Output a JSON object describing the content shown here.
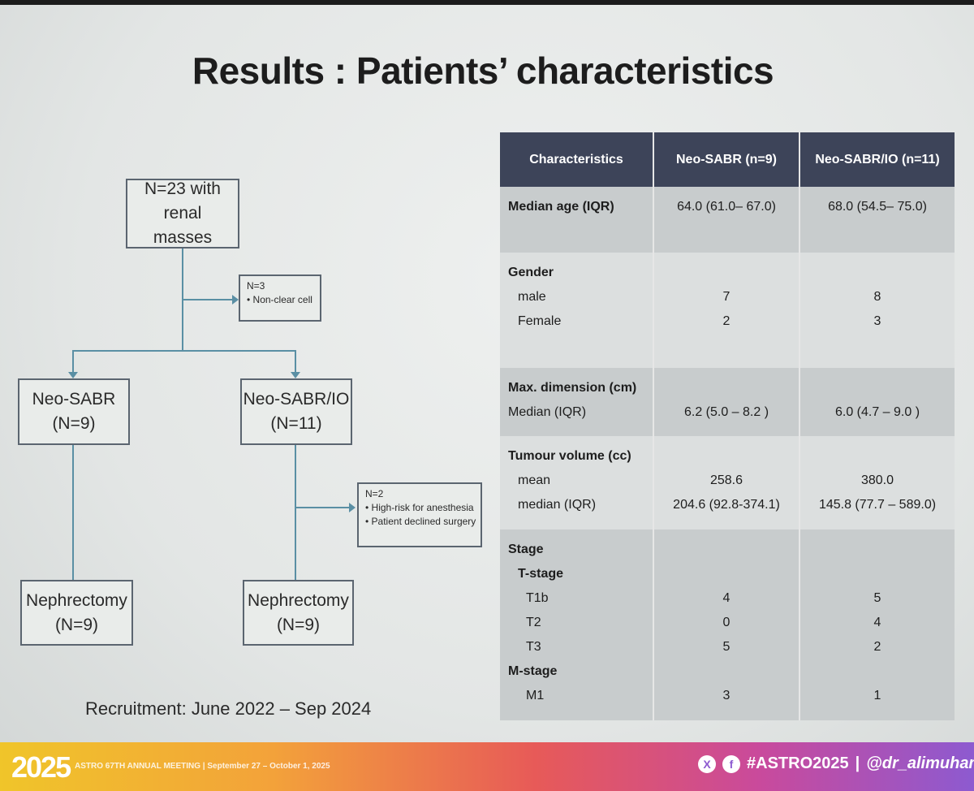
{
  "slide": {
    "title": "Results : Patients’ characteristics"
  },
  "flow": {
    "top": {
      "line1": "N=23 with renal",
      "line2": "masses"
    },
    "excl1": {
      "n": "N=3",
      "items": [
        "Non-clear cell"
      ]
    },
    "left": {
      "line1": "Neo-SABR",
      "line2": "(N=9)"
    },
    "right": {
      "line1": "Neo-SABR/IO",
      "line2": "(N=11)"
    },
    "excl2": {
      "n": "N=2",
      "items": [
        "High-risk for anesthesia",
        "Patient declined surgery"
      ]
    },
    "left_bottom": {
      "line1": "Nephrectomy",
      "line2": "(N=9)"
    },
    "right_bottom": {
      "line1": "Nephrectomy",
      "line2": "(N=9)"
    },
    "recruitment": "Recruitment: June 2022 – Sep 2024"
  },
  "table": {
    "headers": [
      "Characteristics",
      "Neo-SABR (n=9)",
      "Neo-SABR/IO (n=11)"
    ],
    "age": {
      "label": "Median age (IQR)",
      "a": "64.0 (61.0– 67.0)",
      "b": "68.0  (54.5– 75.0)"
    },
    "gender": {
      "label": "Gender",
      "male": "male",
      "female": "Female",
      "male_a": "7",
      "male_b": "8",
      "female_a": "2",
      "female_b": "3"
    },
    "dim": {
      "label": "Max. dimension (cm)",
      "median": "Median (IQR)",
      "a": "6.2 (5.0 – 8.2 )",
      "b": "6.0 (4.7 – 9.0 )"
    },
    "vol": {
      "label": "Tumour volume (cc)",
      "mean": "mean",
      "median": "median (IQR)",
      "mean_a": "258.6",
      "mean_b": "380.0",
      "median_a": "204.6 (92.8-374.1)",
      "median_b": "145.8 (77.7 – 589.0)"
    },
    "stage": {
      "label": "Stage",
      "t": "T-stage",
      "t1b": "T1b",
      "t2": "T2",
      "t3": "T3",
      "m": "M-stage",
      "m1": "M1",
      "t1b_a": "4",
      "t1b_b": "5",
      "t2_a": "0",
      "t2_b": "4",
      "t3_a": "5",
      "t3_b": "2",
      "m1_a": "3",
      "m1_b": "1"
    }
  },
  "footer": {
    "logo": "2025",
    "meeting": "ASTRO 67TH ANNUAL MEETING  |  September 27 – October 1, 2025",
    "hashtag": "#ASTRO2025",
    "separator": "|",
    "handle": "@dr_alimuhammad",
    "icon_x": "X",
    "icon_f": "f"
  }
}
